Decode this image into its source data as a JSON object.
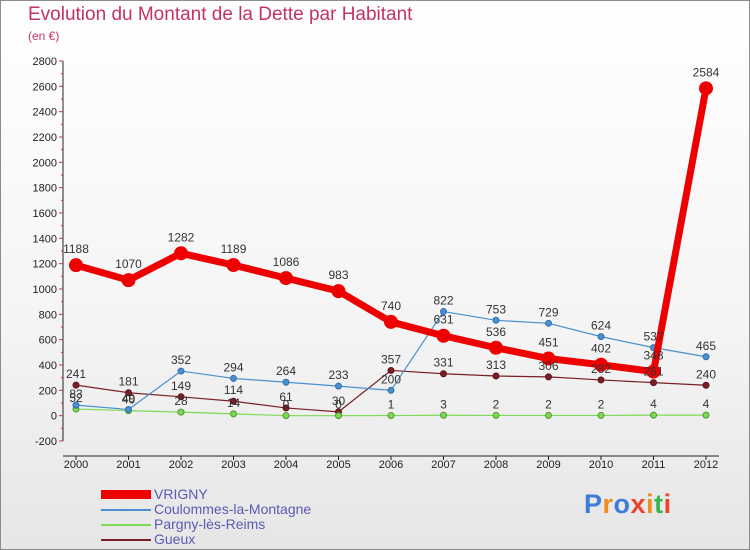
{
  "title": "Evolution du Montant de la Dette par Habitant",
  "unit": "(en €)",
  "brand": "Proxiti",
  "chart_data": {
    "type": "line",
    "x": [
      "2000",
      "2001",
      "2002",
      "2003",
      "2004",
      "2005",
      "2006",
      "2007",
      "2008",
      "2009",
      "2010",
      "2011",
      "2012"
    ],
    "ylim": [
      -200,
      2800
    ],
    "yticks": [
      -200,
      0,
      200,
      400,
      600,
      800,
      1000,
      1200,
      1400,
      1600,
      1800,
      2000,
      2200,
      2400,
      2600,
      2800
    ],
    "grid": false,
    "legend_position": "bottom-left",
    "series": [
      {
        "name": "VRIGNY",
        "color": "#ee0000",
        "values": [
          1188,
          1070,
          1282,
          1189,
          1086,
          983,
          740,
          631,
          536,
          451,
          402,
          348,
          2584
        ]
      },
      {
        "name": "Coulommes-la-Montagne",
        "color": "#4a90d0",
        "values": [
          83,
          49,
          352,
          294,
          264,
          233,
          200,
          822,
          753,
          729,
          624,
          537,
          465
        ]
      },
      {
        "name": "Pargny-lès-Reims",
        "color": "#7ed957",
        "values": [
          52,
          40,
          28,
          14,
          0,
          0,
          1,
          3,
          2,
          2,
          2,
          4,
          4
        ]
      },
      {
        "name": "Gueux",
        "color": "#7a1f25",
        "values": [
          241,
          181,
          149,
          114,
          61,
          30,
          357,
          331,
          313,
          306,
          282,
          261,
          240
        ]
      }
    ]
  }
}
